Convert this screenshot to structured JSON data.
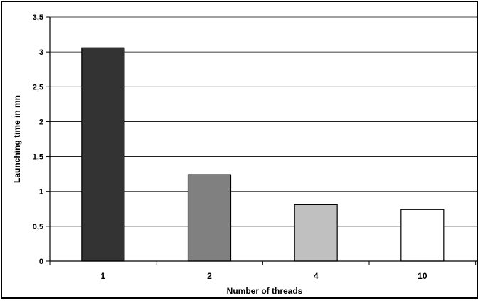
{
  "chart_data": {
    "type": "bar",
    "categories": [
      "1",
      "2",
      "4",
      "10"
    ],
    "values": [
      3.06,
      1.24,
      0.81,
      0.74
    ],
    "bar_colors": [
      "#333333",
      "#808080",
      "#c0c0c0",
      "#ffffff"
    ],
    "xlabel": "Number of threads",
    "ylabel": "Launching time in mn",
    "ylim": [
      0,
      3.5
    ],
    "ytick_values": [
      0,
      0.5,
      1,
      1.5,
      2,
      2.5,
      3,
      3.5
    ],
    "yticks": [
      "0",
      "0,5",
      "1",
      "1,5",
      "2",
      "2,5",
      "3",
      "3,5"
    ],
    "grid": true,
    "legend": "none"
  }
}
